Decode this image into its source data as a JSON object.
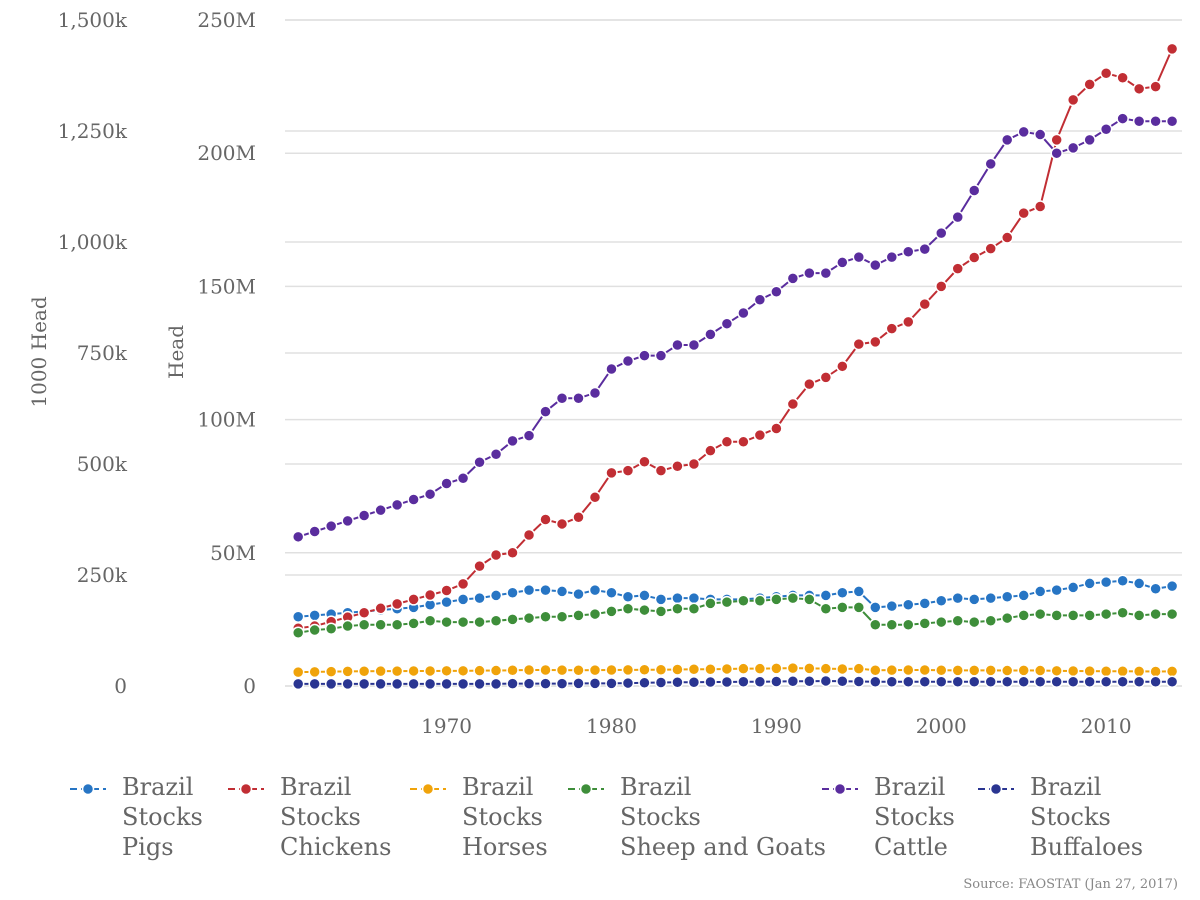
{
  "chart_data": {
    "type": "line",
    "title": "",
    "xlabel": "",
    "ylabel": "Head",
    "y2label": "1000 Head",
    "x": [
      1961,
      1962,
      1963,
      1964,
      1965,
      1966,
      1967,
      1968,
      1969,
      1970,
      1971,
      1972,
      1973,
      1974,
      1975,
      1976,
      1977,
      1978,
      1979,
      1980,
      1981,
      1982,
      1983,
      1984,
      1985,
      1986,
      1987,
      1988,
      1989,
      1990,
      1991,
      1992,
      1993,
      1994,
      1995,
      1996,
      1997,
      1998,
      1999,
      2000,
      2001,
      2002,
      2003,
      2004,
      2005,
      2006,
      2007,
      2008,
      2009,
      2010,
      2011,
      2012,
      2013,
      2014
    ],
    "xlim": [
      1960.2,
      2014.6
    ],
    "ylim": [
      0,
      250000000
    ],
    "y2lim": [
      0,
      1500000
    ],
    "x_ticks": [
      1970,
      1980,
      1990,
      2000,
      2010
    ],
    "x_tick_labels": [
      "1970",
      "1980",
      "1990",
      "2000",
      "2010"
    ],
    "y_ticks": [
      0,
      50000000,
      100000000,
      150000000,
      200000000,
      250000000
    ],
    "y_tick_labels": [
      "0",
      "50M",
      "100M",
      "150M",
      "200M",
      "250M"
    ],
    "y2_ticks": [
      0,
      250000,
      500000,
      750000,
      1000000,
      1250000,
      1500000
    ],
    "y2_tick_labels": [
      "0",
      "250k",
      "500k",
      "750k",
      "1,000k",
      "1,250k",
      "1,500k"
    ],
    "grid": true,
    "legend_position": "bottom",
    "source": "Source: FAOSTAT (Jan 27, 2017)",
    "series": [
      {
        "name": [
          "Brazil",
          "Stocks",
          "Pigs"
        ],
        "color": "#2775c4",
        "axis": "left",
        "values": [
          26000000,
          26500000,
          27000000,
          27500000,
          28000000,
          28500000,
          29000000,
          29500000,
          30500000,
          31500000,
          32500000,
          33000000,
          34000000,
          35000000,
          36000000,
          36000000,
          35500000,
          34500000,
          36000000,
          35000000,
          33500000,
          34000000,
          32500000,
          33000000,
          33000000,
          32500000,
          32500000,
          32500000,
          33000000,
          33500000,
          34000000,
          34000000,
          34000000,
          35000000,
          35500000,
          29500000,
          30000000,
          30500000,
          31000000,
          32000000,
          33000000,
          32500000,
          33000000,
          33500000,
          34000000,
          35500000,
          36000000,
          37000000,
          38500000,
          39000000,
          39500000,
          38500000,
          36500000,
          37500000
        ]
      },
      {
        "name": [
          "Brazil",
          "Stocks",
          "Chickens"
        ],
        "color": "#c12e34",
        "axis": "right",
        "values": [
          130000,
          135000,
          145000,
          155000,
          165000,
          175000,
          185000,
          195000,
          205000,
          215000,
          230000,
          270000,
          295000,
          300000,
          340000,
          375000,
          365000,
          380000,
          425000,
          480000,
          485000,
          505000,
          485000,
          495000,
          500000,
          530000,
          550000,
          550000,
          565000,
          580000,
          635000,
          680000,
          695000,
          720000,
          770000,
          775000,
          805000,
          820000,
          860000,
          900000,
          940000,
          965000,
          985000,
          1010000,
          1065000,
          1080000,
          1230000,
          1320000,
          1355000,
          1380000,
          1370000,
          1345000,
          1350000,
          1435000
        ]
      },
      {
        "name": [
          "Brazil",
          "Stocks",
          "Horses"
        ],
        "color": "#f0a30a",
        "axis": "left",
        "values": [
          5200000,
          5300000,
          5400000,
          5500000,
          5550000,
          5600000,
          5600000,
          5650000,
          5650000,
          5700000,
          5700000,
          5750000,
          5800000,
          5900000,
          6000000,
          6000000,
          5950000,
          5900000,
          5950000,
          6000000,
          6050000,
          6100000,
          6100000,
          6200000,
          6300000,
          6300000,
          6400000,
          6500000,
          6500000,
          6600000,
          6700000,
          6600000,
          6500000,
          6400000,
          6500000,
          5900000,
          5950000,
          6000000,
          6000000,
          5900000,
          5850000,
          5850000,
          5850000,
          5800000,
          5850000,
          5800000,
          5700000,
          5650000,
          5600000,
          5550000,
          5550000,
          5500000,
          5450000,
          5500000
        ]
      },
      {
        "name": [
          "Brazil",
          "Stocks",
          "Sheep and Goats"
        ],
        "color": "#3e8e3a",
        "axis": "left",
        "values": [
          20000000,
          21000000,
          21500000,
          22500000,
          23000000,
          23000000,
          23000000,
          23500000,
          24500000,
          24000000,
          24000000,
          24000000,
          24500000,
          25000000,
          25500000,
          26000000,
          26000000,
          26500000,
          27000000,
          28000000,
          29000000,
          28500000,
          28000000,
          29000000,
          29000000,
          31000000,
          31500000,
          32000000,
          32000000,
          32500000,
          33000000,
          32500000,
          29000000,
          29500000,
          29500000,
          23000000,
          23000000,
          23000000,
          23500000,
          24000000,
          24500000,
          24000000,
          24500000,
          25500000,
          26500000,
          27000000,
          26500000,
          26500000,
          26500000,
          27000000,
          27500000,
          26500000,
          27000000,
          27000000
        ]
      },
      {
        "name": [
          "Brazil",
          "Stocks",
          "Cattle"
        ],
        "color": "#5a2d9e",
        "axis": "left",
        "values": [
          56000000,
          58000000,
          60000000,
          62000000,
          64000000,
          66000000,
          68000000,
          70000000,
          72000000,
          76000000,
          78000000,
          84000000,
          87000000,
          92000000,
          94000000,
          103000000,
          108000000,
          108000000,
          110000000,
          119000000,
          122000000,
          124000000,
          124000000,
          128000000,
          128000000,
          132000000,
          136000000,
          140000000,
          145000000,
          148000000,
          153000000,
          155000000,
          155000000,
          159000000,
          161000000,
          158000000,
          161000000,
          163000000,
          164000000,
          170000000,
          176000000,
          186000000,
          196000000,
          205000000,
          208000000,
          207000000,
          200000000,
          202000000,
          205000000,
          209000000,
          213000000,
          212000000,
          212000000,
          212000000
        ]
      },
      {
        "name": [
          "Brazil",
          "Stocks",
          "Buffaloes"
        ],
        "color": "#2a3591",
        "axis": "left",
        "values": [
          800000,
          800000,
          800000,
          800000,
          800000,
          800000,
          800000,
          800000,
          800000,
          800000,
          800000,
          800000,
          800000,
          900000,
          900000,
          900000,
          900000,
          1000000,
          1000000,
          1000000,
          1100000,
          1200000,
          1300000,
          1400000,
          1400000,
          1500000,
          1500000,
          1600000,
          1600000,
          1700000,
          1800000,
          1800000,
          1900000,
          1800000,
          1700000,
          1600000,
          1600000,
          1600000,
          1600000,
          1600000,
          1600000,
          1600000,
          1600000,
          1600000,
          1600000,
          1600000,
          1600000,
          1600000,
          1600000,
          1600000,
          1600000,
          1600000,
          1600000,
          1600000
        ]
      }
    ]
  }
}
